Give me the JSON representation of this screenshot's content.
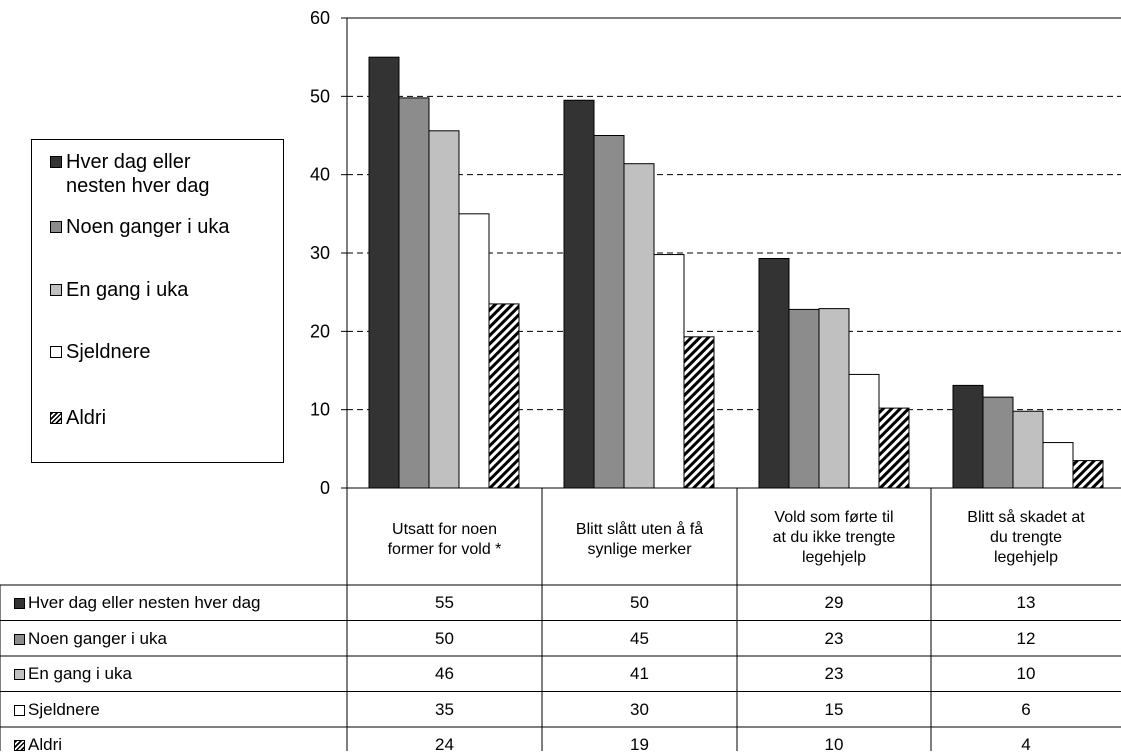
{
  "chart_data": {
    "type": "bar",
    "categories": [
      "Utsatt for noen\nformer for vold *",
      "Blitt slått uten å få\nsynlige merker",
      "Vold som førte til\nat du ikke trengte\nlegehjelp",
      "Blitt så skadet at\ndu trengte\nlegehjelp"
    ],
    "series": [
      {
        "name": "Hver dag eller nesten hver dag",
        "legend_label": "Hver dag eller\nnesten hver dag",
        "color": "#333333",
        "values": [
          55,
          50,
          29,
          13
        ],
        "bar_values": [
          55,
          49.5,
          29.3,
          13.1
        ]
      },
      {
        "name": "Noen ganger i uka",
        "legend_label": "Noen ganger i uka",
        "color": "#8c8c8c",
        "values": [
          50,
          45,
          23,
          12
        ],
        "bar_values": [
          49.8,
          45,
          22.8,
          11.6
        ]
      },
      {
        "name": "En gang i uka",
        "legend_label": "En gang i uka",
        "color": "#c0c0c0",
        "values": [
          46,
          41,
          23,
          10
        ],
        "bar_values": [
          45.6,
          41.4,
          22.9,
          9.8
        ]
      },
      {
        "name": "Sjeldnere",
        "legend_label": "Sjeldnere",
        "color": "#ffffff",
        "values": [
          35,
          30,
          15,
          6
        ],
        "bar_values": [
          35,
          29.8,
          14.5,
          5.8
        ]
      },
      {
        "name": "Aldri",
        "legend_label": "Aldri",
        "color": "hatched",
        "values": [
          24,
          19,
          10,
          4
        ],
        "bar_values": [
          23.5,
          19.3,
          10.2,
          3.5
        ]
      }
    ],
    "yticks": [
      "0",
      "10",
      "20",
      "30",
      "40",
      "50",
      "60"
    ],
    "ylim": [
      0,
      60
    ],
    "grid": "dashed-horizontal",
    "legend_position": "left",
    "data_table": true
  }
}
